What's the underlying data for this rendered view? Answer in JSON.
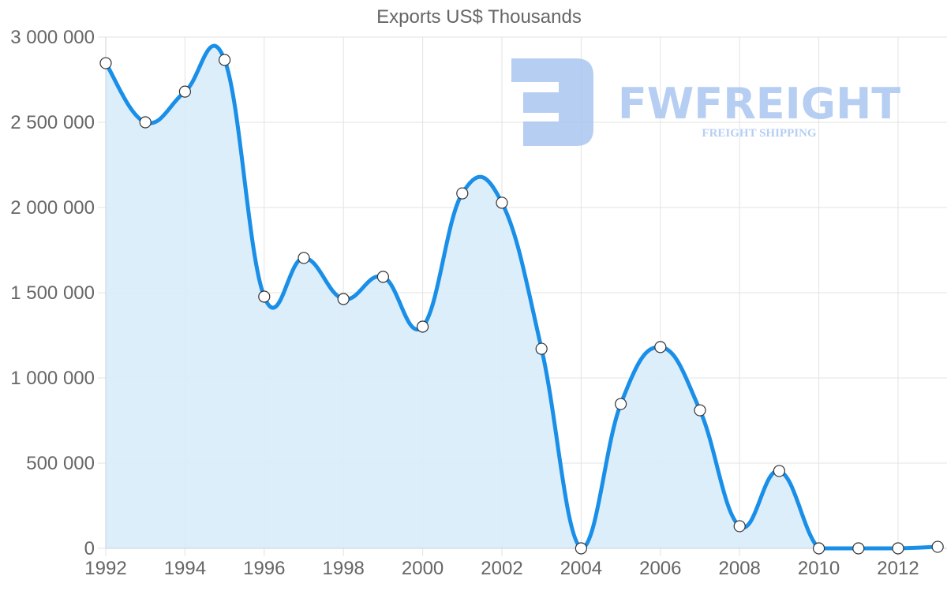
{
  "chart_data": {
    "type": "line",
    "title": "Exports US$ Thousands",
    "xlabel": "",
    "ylabel": "",
    "x": [
      1992,
      1993,
      1994,
      1995,
      1996,
      1997,
      1998,
      1999,
      2000,
      2001,
      2002,
      2003,
      2004,
      2005,
      2006,
      2007,
      2008,
      2009,
      2010,
      2011,
      2012,
      2013
    ],
    "series": [
      {
        "name": "Exports US$ Thousands",
        "values": [
          2847000,
          2500000,
          2680000,
          2866000,
          1477000,
          1704000,
          1463000,
          1593000,
          1301000,
          2083000,
          2028000,
          1171000,
          0,
          847000,
          1181000,
          810000,
          130000,
          454000,
          0,
          0,
          0,
          9000
        ]
      }
    ],
    "x_tick_labels": [
      "1992",
      "1994",
      "1996",
      "1998",
      "2000",
      "2002",
      "2004",
      "2006",
      "2008",
      "2010",
      "2012"
    ],
    "y_tick_labels": [
      "0",
      "500 000",
      "1 000 000",
      "1 500 000",
      "2 000 000",
      "2 500 000",
      "3 000 000"
    ],
    "ylim": [
      0,
      3000000
    ],
    "xlim": [
      1992,
      2013
    ],
    "grid": true,
    "legend": "none",
    "fill": true
  },
  "watermark": {
    "brand": "FWFREIGHT",
    "tagline": "FREIGHT SHIPPING"
  },
  "colors": {
    "line": "#1a8fe8",
    "fill": "#d9ecfb",
    "grid": "#e3e3e3",
    "text": "#666666",
    "watermark": "#a9c6f0",
    "point_fill": "#ffffff",
    "point_stroke": "#333333"
  }
}
